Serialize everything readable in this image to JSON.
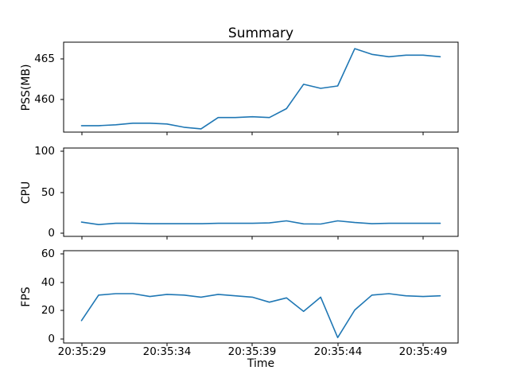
{
  "figure": {
    "title": "Summary",
    "background_color": "#ffffff",
    "frame_color": "#000000",
    "text_color": "#000000"
  },
  "chart_data": {
    "type": "line",
    "title": "Summary",
    "xlabel": "Time",
    "grid": false,
    "legend": "none",
    "line_color": "#1f77b4",
    "x": [
      "20:35:29",
      "20:35:30",
      "20:35:31",
      "20:35:32",
      "20:35:33",
      "20:35:34",
      "20:35:35",
      "20:35:36",
      "20:35:37",
      "20:35:38",
      "20:35:39",
      "20:35:40",
      "20:35:41",
      "20:35:42",
      "20:35:43",
      "20:35:44",
      "20:35:45",
      "20:35:46",
      "20:35:47",
      "20:35:48",
      "20:35:49",
      "20:35:50"
    ],
    "x_tick_labels": [
      "20:35:29",
      "20:35:34",
      "20:35:39",
      "20:35:44",
      "20:35:49"
    ],
    "x_tick_indices": [
      0,
      5,
      10,
      15,
      20
    ],
    "xlim_index": [
      -1.05,
      22.05
    ],
    "series": [
      {
        "name": "PSS",
        "ylabel": "PSS(MB)",
        "yticks": [
          460,
          465
        ],
        "ylim": [
          456.0,
          467.1
        ],
        "values": [
          456.8,
          456.8,
          456.9,
          457.1,
          457.1,
          457.0,
          456.6,
          456.4,
          457.8,
          457.8,
          457.9,
          457.8,
          458.9,
          461.9,
          461.4,
          461.7,
          466.3,
          465.6,
          465.3,
          465.5,
          465.5,
          465.3
        ]
      },
      {
        "name": "CPU",
        "ylabel": "CPU",
        "yticks": [
          0,
          50,
          100
        ],
        "ylim": [
          -3.9,
          103.9
        ],
        "values": [
          13.5,
          10.5,
          12,
          12,
          11.5,
          11.5,
          11.5,
          11.5,
          12,
          12,
          12,
          12.5,
          15,
          11.3,
          11.2,
          15,
          13,
          11.5,
          12,
          12,
          12,
          12
        ]
      },
      {
        "name": "FPS",
        "ylabel": "FPS",
        "yticks": [
          0,
          20,
          40,
          60
        ],
        "ylim": [
          -2.8,
          62.3
        ],
        "values": [
          13,
          31,
          32,
          32,
          30,
          31.5,
          31,
          29.5,
          31.5,
          30.5,
          29.5,
          26,
          29,
          19.5,
          29.5,
          1,
          20.5,
          31,
          32,
          30.5,
          30,
          30.5
        ]
      }
    ]
  }
}
